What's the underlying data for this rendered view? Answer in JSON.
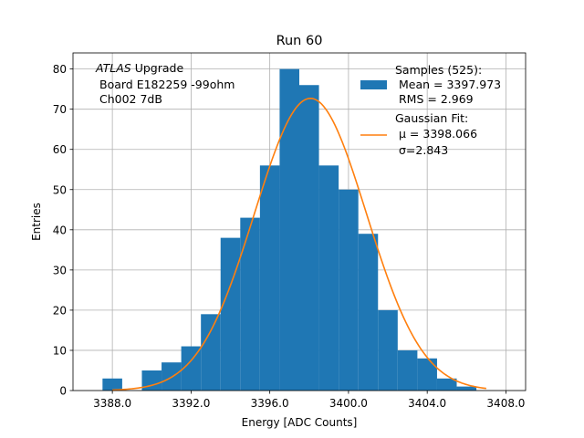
{
  "chart_data": {
    "type": "bar",
    "title": "Run 60",
    "xlabel": "Energy [ADC Counts]",
    "ylabel": "Entries",
    "xlim": [
      3386,
      3409
    ],
    "ylim": [
      0,
      84
    ],
    "grid": true,
    "legend_position": "top-right",
    "bin_width": 1,
    "bins": [
      {
        "x": 3388,
        "count": 3
      },
      {
        "x": 3389,
        "count": 0
      },
      {
        "x": 3390,
        "count": 5
      },
      {
        "x": 3391,
        "count": 7
      },
      {
        "x": 3392,
        "count": 11
      },
      {
        "x": 3393,
        "count": 19
      },
      {
        "x": 3394,
        "count": 38
      },
      {
        "x": 3395,
        "count": 43
      },
      {
        "x": 3396,
        "count": 56
      },
      {
        "x": 3397,
        "count": 80
      },
      {
        "x": 3398,
        "count": 76
      },
      {
        "x": 3399,
        "count": 56
      },
      {
        "x": 3400,
        "count": 50
      },
      {
        "x": 3401,
        "count": 39
      },
      {
        "x": 3402,
        "count": 20
      },
      {
        "x": 3403,
        "count": 10
      },
      {
        "x": 3404,
        "count": 8
      },
      {
        "x": 3405,
        "count": 3
      },
      {
        "x": 3406,
        "count": 1
      }
    ],
    "x_ticks": [
      "3388.0",
      "3392.0",
      "3396.0",
      "3400.0",
      "3404.0",
      "3408.0"
    ],
    "y_ticks": [
      "0",
      "10",
      "20",
      "30",
      "40",
      "50",
      "60",
      "70",
      "80"
    ],
    "fit": {
      "amplitude": 72.7,
      "mean": 3398.066,
      "sigma": 2.843,
      "x_start": 3388.0,
      "x_end": 3407.0
    },
    "annotation": {
      "line1_italic": "ATLAS",
      "line1_rest": " Upgrade",
      "line2": "Board E182259 -99ohm",
      "line3": "Ch002 7dB"
    },
    "legend": {
      "samples_title": "Samples (525):",
      "samples_mean": "Mean = 3397.973",
      "samples_rms": "RMS = 2.969",
      "fit_title": "Gaussian Fit:",
      "fit_mu": "μ = 3398.066",
      "fit_sigma": "σ=2.843"
    },
    "colors": {
      "bars": "#1f77b4",
      "fit": "#ff7f0e",
      "grid": "#b0b0b0",
      "axes": "#000000"
    }
  }
}
